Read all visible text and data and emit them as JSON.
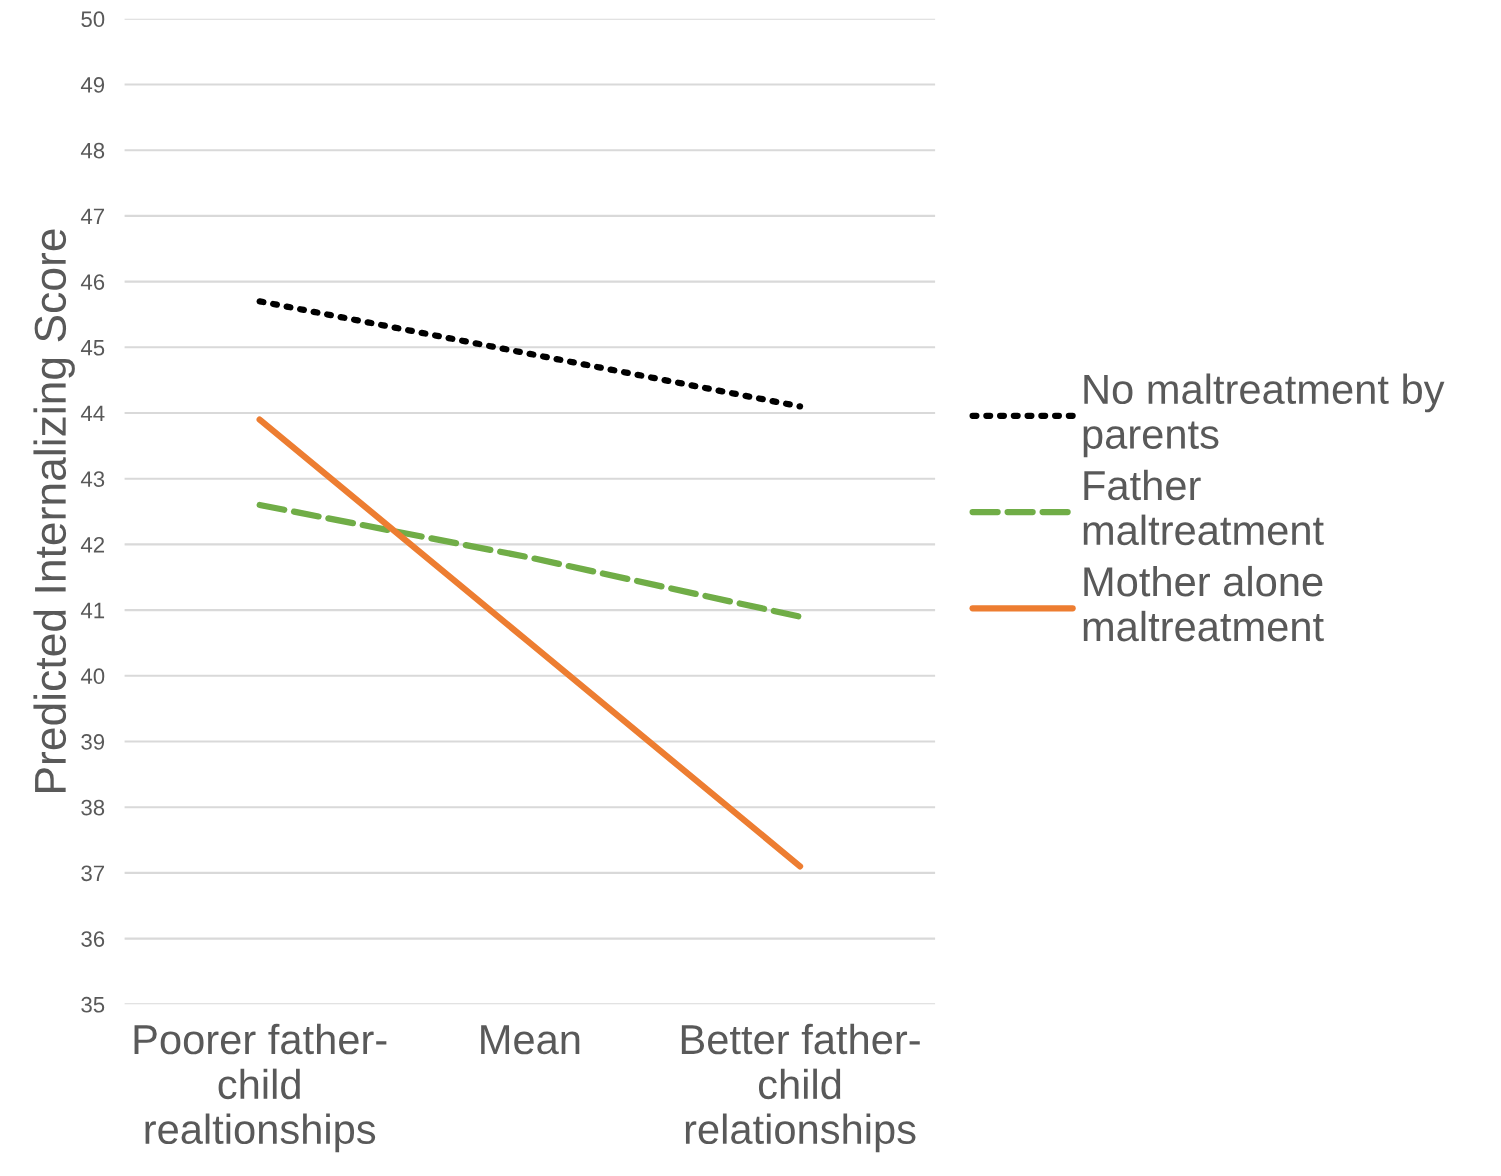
{
  "chart_data": {
    "type": "line",
    "ylabel": "Predicted Internalizing Score",
    "categories": [
      "Poorer father-\nchild\nrealtionships",
      "Mean",
      "Better father-\nchild\nrelationships"
    ],
    "series": [
      {
        "name": "No maltreatment by\nparents",
        "color": "#000000",
        "line_style": "dotted",
        "values": [
          45.7,
          44.9,
          44.1
        ]
      },
      {
        "name": "Father\nmaltreatment",
        "color": "#70ad47",
        "line_style": "dashed",
        "values": [
          42.6,
          41.8,
          40.9
        ]
      },
      {
        "name": "Mother alone\nmaltreatment",
        "color": "#ed7d31",
        "line_style": "solid",
        "values": [
          43.9,
          40.5,
          37.1
        ]
      }
    ],
    "ylim": [
      35,
      50
    ],
    "yticks": [
      35,
      36,
      37,
      38,
      39,
      40,
      41,
      42,
      43,
      44,
      45,
      46,
      47,
      48,
      49,
      50
    ],
    "grid": "y",
    "legend": "right",
    "marker": "none"
  }
}
